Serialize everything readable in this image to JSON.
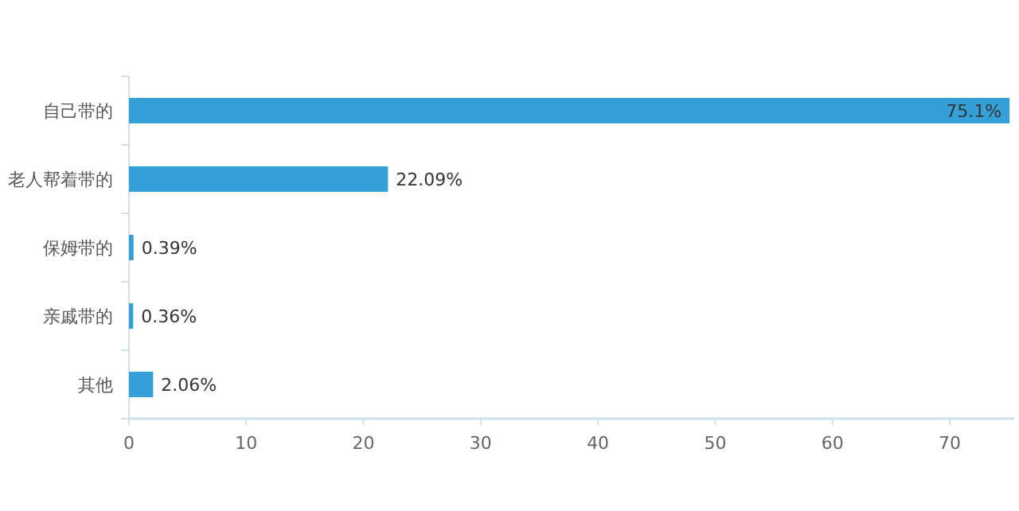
{
  "chart_data": {
    "type": "bar",
    "orientation": "horizontal",
    "categories": [
      "自己带的",
      "老人帮着带的",
      "保姆带的",
      "亲戚带的",
      "其他"
    ],
    "values": [
      75.1,
      22.09,
      0.39,
      0.36,
      2.06
    ],
    "value_labels": [
      "75.1%",
      "22.09%",
      "0.39%",
      "0.36%",
      "2.06%"
    ],
    "color": "#35a0d8",
    "xlim": [
      0,
      75.5
    ],
    "xticks": [
      0,
      10,
      20,
      30,
      40,
      50,
      60,
      70
    ]
  }
}
